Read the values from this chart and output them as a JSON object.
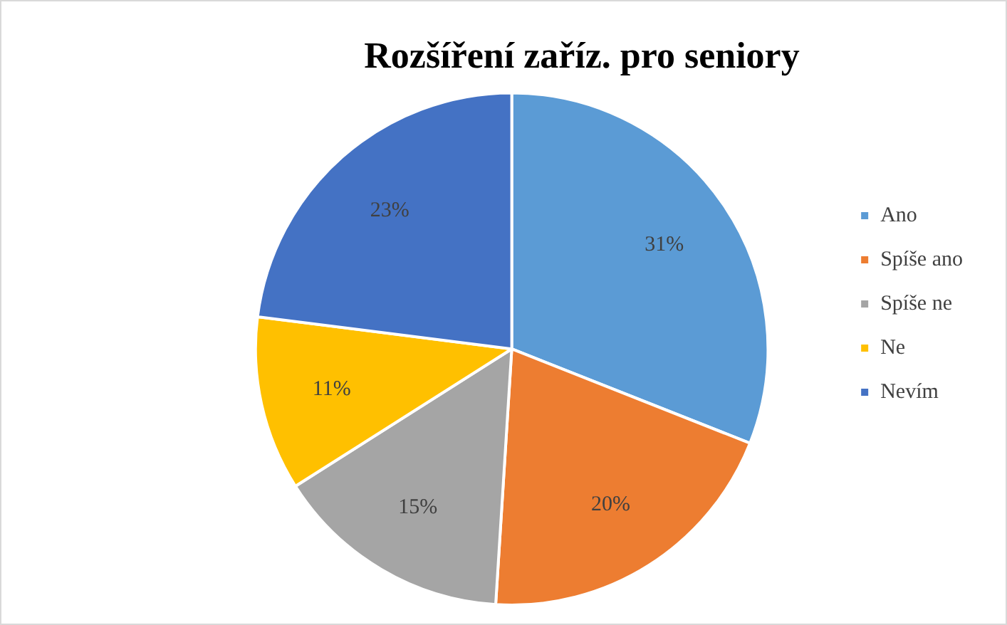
{
  "chart_data": {
    "type": "pie",
    "title": "Rozšíření zaříz. pro seniory",
    "categories": [
      "Ano",
      "Spíše ano",
      "Spíše ne",
      "Ne",
      "Nevím"
    ],
    "values": [
      31,
      20,
      15,
      11,
      23
    ],
    "colors": [
      "#5b9bd5",
      "#ed7d31",
      "#a5a5a5",
      "#ffc000",
      "#4472c4"
    ],
    "value_labels": [
      "31%",
      "20%",
      "15%",
      "11%",
      "23%"
    ],
    "legend": "right"
  }
}
